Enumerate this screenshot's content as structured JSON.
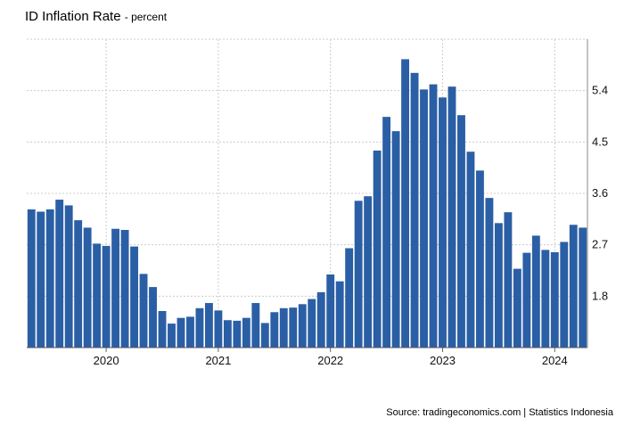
{
  "header": {
    "title": "ID Inflation Rate",
    "subtitle": "- percent"
  },
  "footer": {
    "source": "Source: tradingeconomics.com | Statistics Indonesia"
  },
  "chart_data": {
    "type": "bar",
    "title": "ID Inflation Rate",
    "subtitle": "- percent",
    "ylabel": "",
    "xlabel": "",
    "ylim": [
      0.9,
      6.3
    ],
    "yticks": [
      1.8,
      2.7,
      3.6,
      4.5,
      5.4
    ],
    "ytick_labels": [
      "1.8",
      "2.7",
      "3.6",
      "4.5",
      "5.4"
    ],
    "year_labels": [
      {
        "label": "2020",
        "index": 8
      },
      {
        "label": "2021",
        "index": 20
      },
      {
        "label": "2022",
        "index": 32
      },
      {
        "label": "2023",
        "index": 44
      },
      {
        "label": "2024",
        "index": 56
      }
    ],
    "grid": true,
    "bar_color": "#2b5fa5",
    "grid_color": "#cccccc",
    "categories": [
      "2019-05",
      "2019-06",
      "2019-07",
      "2019-08",
      "2019-09",
      "2019-10",
      "2019-11",
      "2019-12",
      "2020-01",
      "2020-02",
      "2020-03",
      "2020-04",
      "2020-05",
      "2020-06",
      "2020-07",
      "2020-08",
      "2020-09",
      "2020-10",
      "2020-11",
      "2020-12",
      "2021-01",
      "2021-02",
      "2021-03",
      "2021-04",
      "2021-05",
      "2021-06",
      "2021-07",
      "2021-08",
      "2021-09",
      "2021-10",
      "2021-11",
      "2021-12",
      "2022-01",
      "2022-02",
      "2022-03",
      "2022-04",
      "2022-05",
      "2022-06",
      "2022-07",
      "2022-08",
      "2022-09",
      "2022-10",
      "2022-11",
      "2022-12",
      "2023-01",
      "2023-02",
      "2023-03",
      "2023-04",
      "2023-05",
      "2023-06",
      "2023-07",
      "2023-08",
      "2023-09",
      "2023-10",
      "2023-11",
      "2023-12",
      "2024-01",
      "2024-02",
      "2024-03",
      "2024-04"
    ],
    "values": [
      3.32,
      3.28,
      3.32,
      3.49,
      3.39,
      3.13,
      3.0,
      2.72,
      2.68,
      2.98,
      2.96,
      2.67,
      2.19,
      1.96,
      1.54,
      1.32,
      1.42,
      1.44,
      1.59,
      1.68,
      1.55,
      1.38,
      1.37,
      1.42,
      1.68,
      1.33,
      1.52,
      1.59,
      1.6,
      1.66,
      1.75,
      1.87,
      2.18,
      2.06,
      2.64,
      3.47,
      3.55,
      4.35,
      4.94,
      4.69,
      5.95,
      5.71,
      5.42,
      5.51,
      5.28,
      5.47,
      4.97,
      4.33,
      4.0,
      3.52,
      3.08,
      3.27,
      2.28,
      2.56,
      2.86,
      2.61,
      2.57,
      2.75,
      3.05,
      3.0
    ]
  }
}
